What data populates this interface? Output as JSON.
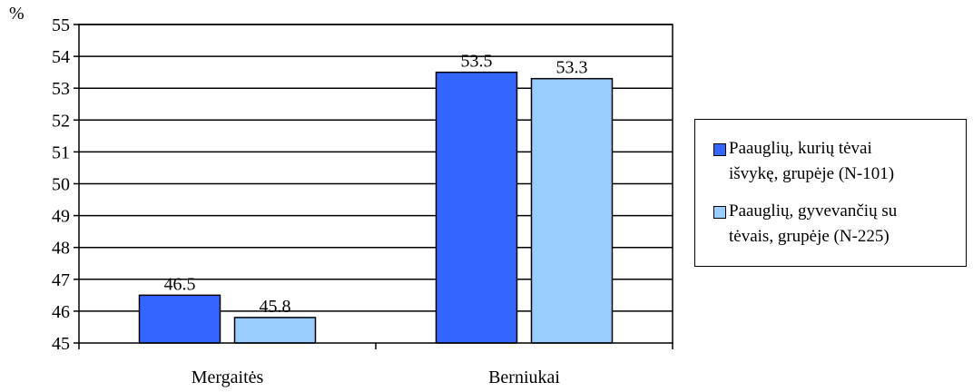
{
  "chart_data": {
    "type": "bar",
    "ylabel": "%",
    "ylim": [
      45,
      55
    ],
    "yticks": [
      "45",
      "46",
      "47",
      "48",
      "49",
      "50",
      "51",
      "52",
      "53",
      "54",
      "55"
    ],
    "categories": [
      "Mergaitės",
      "Berniukai"
    ],
    "series": [
      {
        "name": "Paauglių, kurių tėvai išvykę, grupėje (N-101)",
        "color": "#3366ff",
        "values": [
          46.5,
          53.5
        ],
        "labels": [
          "46.5",
          "53.5"
        ]
      },
      {
        "name": "Paauglių, gyvevančių su tėvais, grupėje (N-225)",
        "color": "#99ccff",
        "values": [
          45.8,
          53.3
        ],
        "labels": [
          "45.8",
          "53.3"
        ]
      }
    ],
    "grid": true,
    "legend_position": "right"
  },
  "legend": {
    "item1_line1": "Paauglių, kurių tėvai",
    "item1_line2": "išvykę, grupėje (N-101)",
    "item2_line1": "Paauglių, gyvevančių su",
    "item2_line2": "tėvais, grupėje (N-225)"
  }
}
